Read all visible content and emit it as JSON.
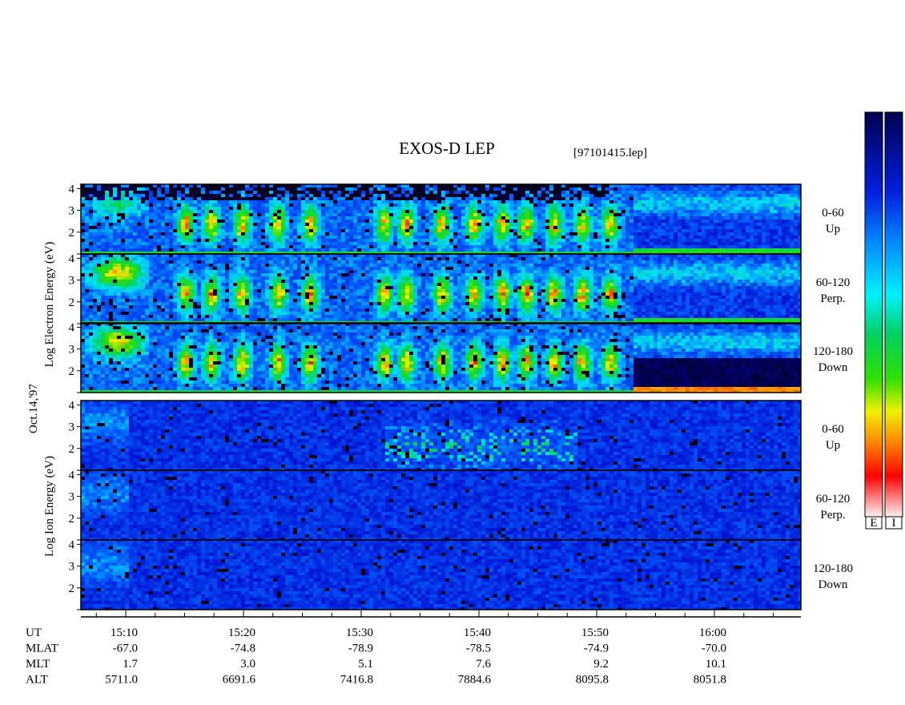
{
  "title": "EXOS-D LEP",
  "file": "[97101415.lep]",
  "date_label": "Oct.14,'97",
  "electron_axis_label": "Log  Electron  Energy (eV)",
  "ion_axis_label": "Log  Ion  Energy (eV)",
  "panels": [
    {
      "pitch": "0-60",
      "direction": "Up",
      "yticks": [
        4,
        3,
        2
      ]
    },
    {
      "pitch": "60-120",
      "direction": "Perp.",
      "yticks": [
        4,
        3,
        2
      ]
    },
    {
      "pitch": "120-180",
      "direction": "Down",
      "yticks": [
        4,
        3,
        2
      ]
    },
    {
      "pitch": "0-60",
      "direction": "Up",
      "yticks": [
        4,
        3,
        2
      ]
    },
    {
      "pitch": "60-120",
      "direction": "Perp.",
      "yticks": [
        4,
        3,
        2
      ]
    },
    {
      "pitch": "120-180",
      "direction": "Down",
      "yticks": [
        4,
        3,
        2
      ]
    }
  ],
  "time_axis": {
    "rows": [
      {
        "label": "UT",
        "values": [
          "15:10",
          "15:20",
          "15:30",
          "15:40",
          "15:50",
          "16:00"
        ]
      },
      {
        "label": "MLAT",
        "values": [
          "-67.0",
          "-74.8",
          "-78.9",
          "-78.5",
          "-74.9",
          "-70.0"
        ]
      },
      {
        "label": "MLT",
        "values": [
          "1.7",
          "3.0",
          "5.1",
          "7.6",
          "9.2",
          "10.1"
        ]
      },
      {
        "label": "ALT",
        "values": [
          "5711.0",
          "6691.6",
          "7416.8",
          "7884.6",
          "8095.8",
          "8051.8"
        ]
      }
    ]
  },
  "colorbar_labels": [
    "E",
    "I"
  ]
}
